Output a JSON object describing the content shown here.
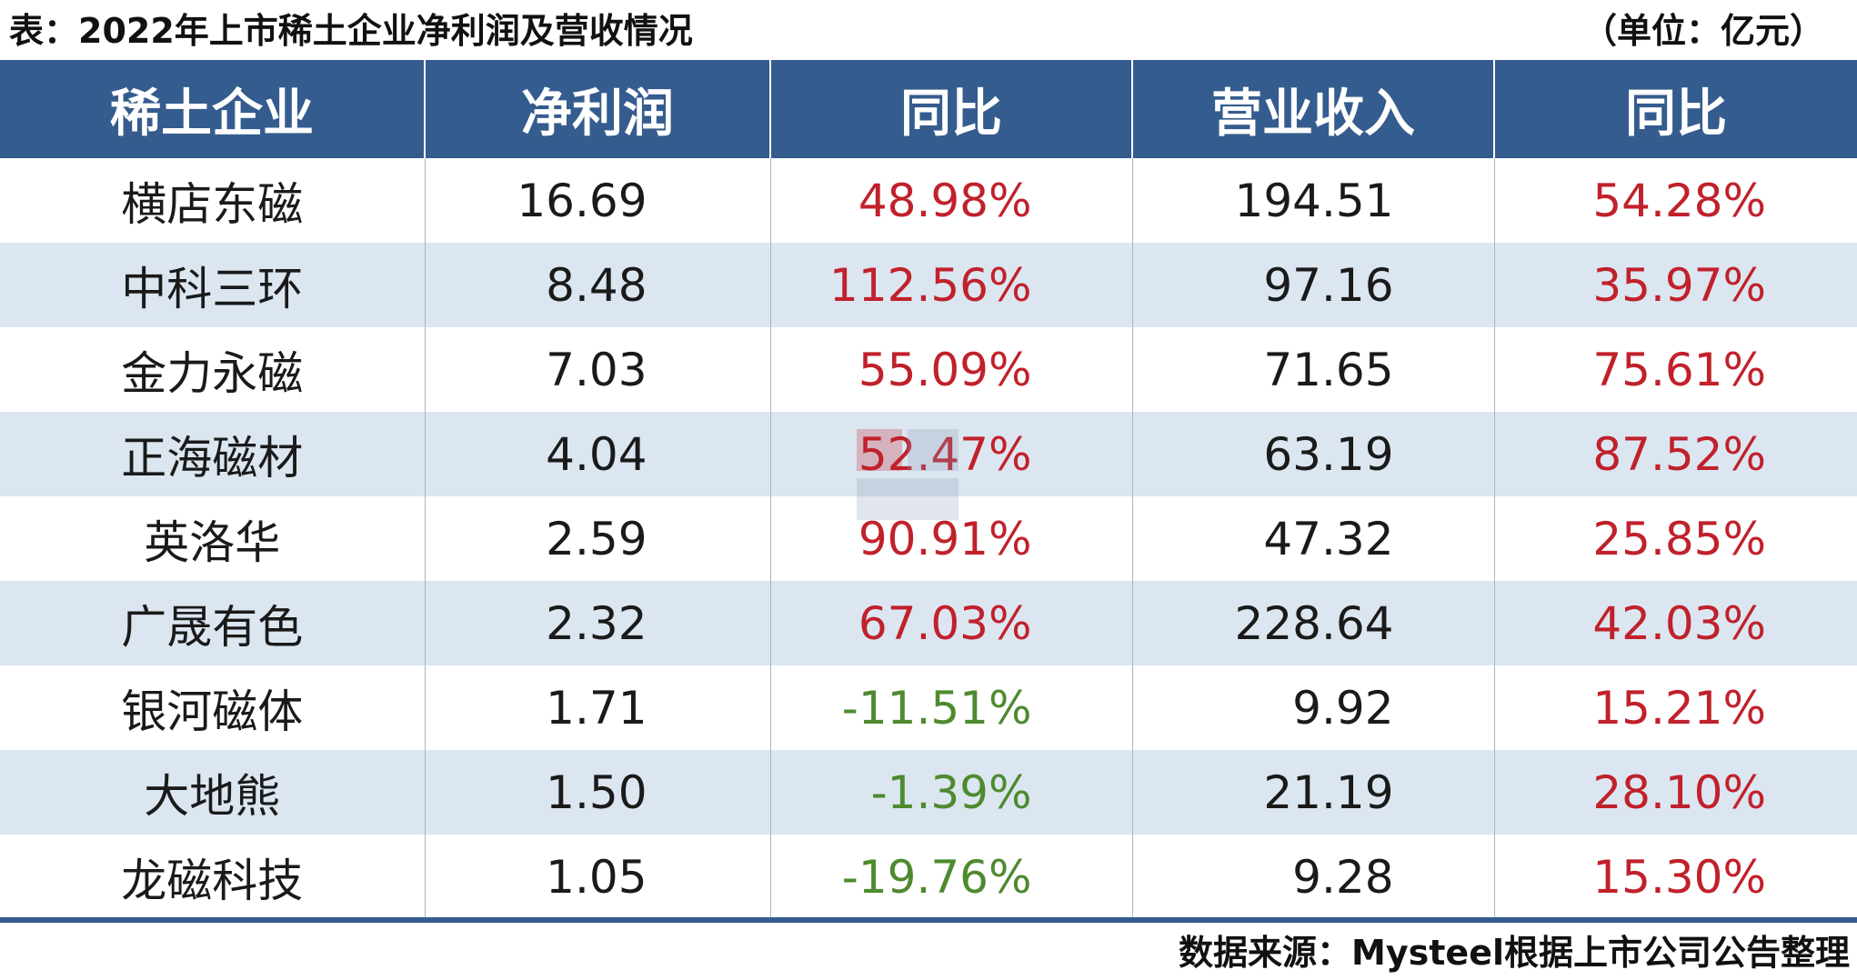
{
  "title": "表：2022年上市稀土企业净利润及营收情况",
  "unit": "（单位：亿元）",
  "source": "数据来源：Mysteel根据上市公司公告整理",
  "colors": {
    "header_bg": "#355c8e",
    "stripe_bg": "#dce6f1",
    "positive": "#c0212b",
    "negative": "#4e8a2e"
  },
  "table": {
    "headers": [
      "稀土企业",
      "净利润",
      "同比",
      "营业收入",
      "同比"
    ],
    "rows": [
      {
        "company": "横店东磁",
        "net_profit": "16.69",
        "profit_yoy": "48.98%",
        "revenue": "194.51",
        "revenue_yoy": "54.28%"
      },
      {
        "company": "中科三环",
        "net_profit": "8.48",
        "profit_yoy": "112.56%",
        "revenue": "97.16",
        "revenue_yoy": "35.97%"
      },
      {
        "company": "金力永磁",
        "net_profit": "7.03",
        "profit_yoy": "55.09%",
        "revenue": "71.65",
        "revenue_yoy": "75.61%"
      },
      {
        "company": "正海磁材",
        "net_profit": "4.04",
        "profit_yoy": "52.47%",
        "revenue": "63.19",
        "revenue_yoy": "87.52%"
      },
      {
        "company": "英洛华",
        "net_profit": "2.59",
        "profit_yoy": "90.91%",
        "revenue": "47.32",
        "revenue_yoy": "25.85%"
      },
      {
        "company": "广晟有色",
        "net_profit": "2.32",
        "profit_yoy": "67.03%",
        "revenue": "228.64",
        "revenue_yoy": "42.03%"
      },
      {
        "company": "银河磁体",
        "net_profit": "1.71",
        "profit_yoy": "-11.51%",
        "revenue": "9.92",
        "revenue_yoy": "15.21%"
      },
      {
        "company": "大地熊",
        "net_profit": "1.50",
        "profit_yoy": "-1.39%",
        "revenue": "21.19",
        "revenue_yoy": "28.10%"
      },
      {
        "company": "龙磁科技",
        "net_profit": "1.05",
        "profit_yoy": "-19.76%",
        "revenue": "9.28",
        "revenue_yoy": "15.30%"
      }
    ]
  }
}
